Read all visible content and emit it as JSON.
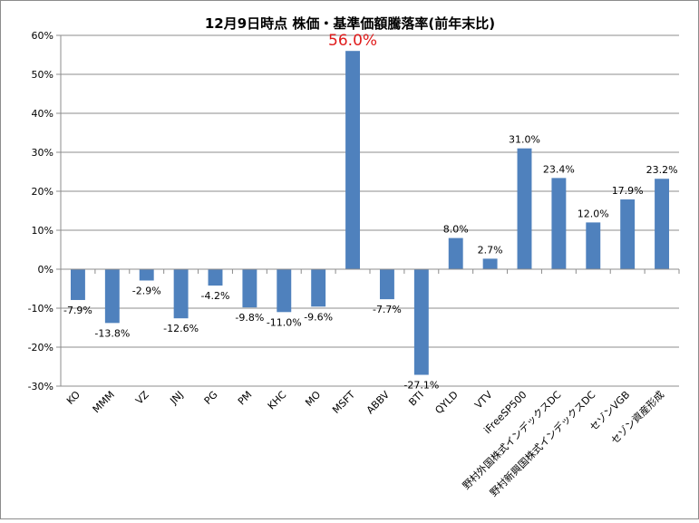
{
  "chart_data": {
    "type": "bar",
    "title": "12月9日時点 株価・基準価額騰落率(前年末比)",
    "xlabel": "",
    "ylabel": "",
    "ylim": [
      -30,
      60
    ],
    "yticks": [
      -30,
      -20,
      -10,
      0,
      10,
      20,
      30,
      40,
      50,
      60
    ],
    "ytick_labels": [
      "-30%",
      "-20%",
      "-10%",
      "0%",
      "10%",
      "20%",
      "30%",
      "40%",
      "50%",
      "60%"
    ],
    "grid": true,
    "legend": "none",
    "bar_color": "#4f81bd",
    "highlight_label_color": "#e01b1b",
    "categories": [
      "KO",
      "MMM",
      "VZ",
      "JNJ",
      "PG",
      "PM",
      "KHC",
      "MO",
      "MSFT",
      "ABBV",
      "BTI",
      "QYLD",
      "VTV",
      "iFreeSP500",
      "野村外国株式インデックスDC",
      "野村新興国株式インデックスDC",
      "セゾンVGB",
      "セゾン資産形成"
    ],
    "values": [
      -7.9,
      -13.8,
      -2.9,
      -12.6,
      -4.2,
      -9.8,
      -11.0,
      -9.6,
      56.0,
      -7.7,
      -27.1,
      8.0,
      2.7,
      31.0,
      23.4,
      12.0,
      17.9,
      23.2
    ],
    "data_labels": [
      "-7.9%",
      "-13.8%",
      "-2.9%",
      "-12.6%",
      "-4.2%",
      "-9.8%",
      "-11.0%",
      "-9.6%",
      "56.0%",
      "-7.7%",
      "-27.1%",
      "8.0%",
      "2.7%",
      "31.0%",
      "23.4%",
      "12.0%",
      "17.9%",
      "23.2%"
    ],
    "highlight_index": 8
  }
}
